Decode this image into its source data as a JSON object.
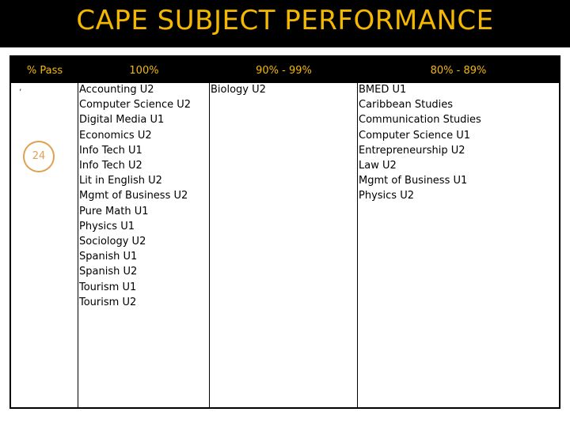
{
  "title": "CAPE SUBJECT PERFORMANCE",
  "headers": {
    "pass": "% Pass",
    "col100": "100%",
    "col90": "90% - 99%",
    "col80": "80% - 89%"
  },
  "badge_value": "24",
  "colors": {
    "title": "#f5b800",
    "header_text": "#f5b800",
    "badge": "#e0a050"
  },
  "col100_items": [
    "Accounting U2",
    "Computer Science U2",
    "Digital Media U1",
    "Economics U2",
    "Info Tech U1",
    "Info Tech U2",
    "Lit in English U2",
    "Mgmt of Business U2",
    "Pure Math U1",
    "Physics U1",
    "Sociology U2",
    "Spanish U1",
    "Spanish U2",
    "Tourism U1",
    "Tourism U2"
  ],
  "col90_items": [
    "Biology U2"
  ],
  "col80_items": [
    "BMED U1",
    "Caribbean Studies",
    "Communication Studies",
    "Computer Science U1",
    "Entrepreneurship U2",
    "Law U2",
    "Mgmt of Business U1",
    "Physics U2"
  ]
}
